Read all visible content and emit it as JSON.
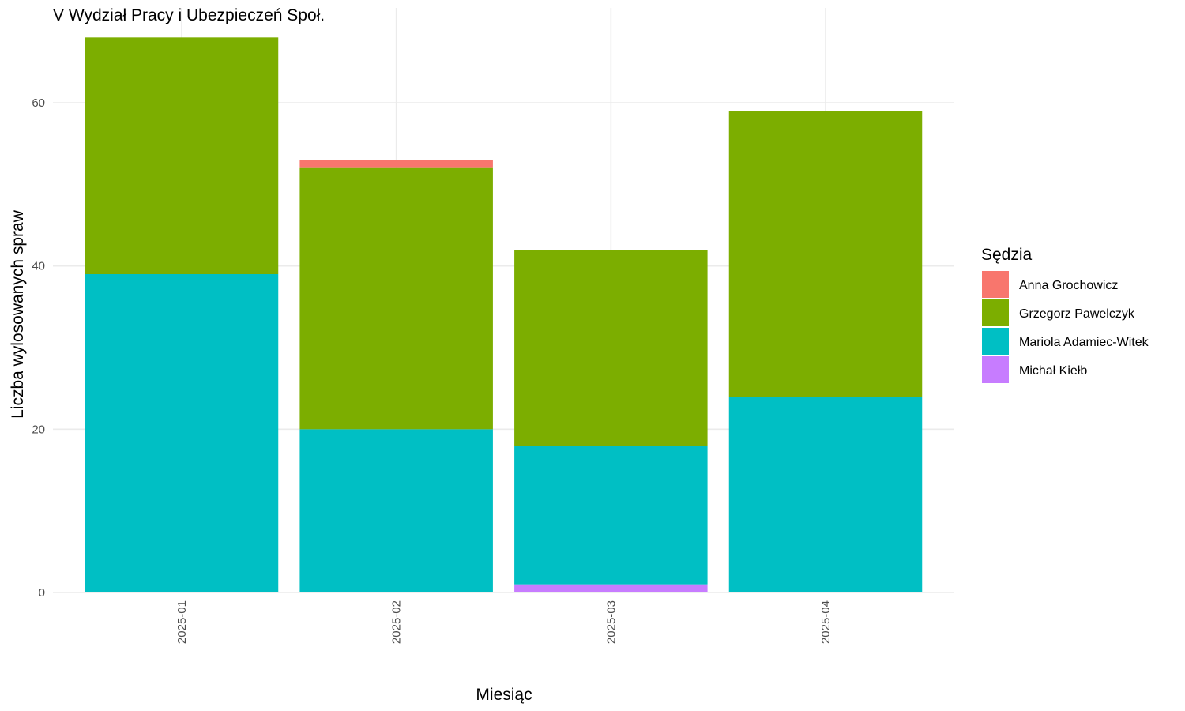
{
  "chart_data": {
    "type": "bar",
    "stacked": true,
    "title": "V Wydział Pracy i Ubezpieczeń Społ.",
    "xlabel": "Miesiąc",
    "ylabel": "Liczba wylosowanych spraw",
    "categories": [
      "2025-01",
      "2025-02",
      "2025-03",
      "2025-04"
    ],
    "ylim": [
      0,
      68
    ],
    "yticks": [
      0,
      20,
      40,
      60
    ],
    "grid": true,
    "legend": {
      "title": "Sędzia",
      "position": "right"
    },
    "stack_order": [
      "Michał Kiełb",
      "Mariola Adamiec-Witek",
      "Grzegorz Pawelczyk",
      "Anna Grochowicz"
    ],
    "series": [
      {
        "name": "Anna Grochowicz",
        "color": "#F8766D",
        "values": [
          0,
          1,
          0,
          0
        ]
      },
      {
        "name": "Grzegorz Pawelczyk",
        "color": "#7CAE00",
        "values": [
          29,
          32,
          24,
          35
        ]
      },
      {
        "name": "Mariola Adamiec-Witek",
        "color": "#00BFC4",
        "values": [
          39,
          20,
          17,
          24
        ]
      },
      {
        "name": "Michał Kiełb",
        "color": "#C77CFF",
        "values": [
          0,
          0,
          1,
          0
        ]
      }
    ]
  }
}
